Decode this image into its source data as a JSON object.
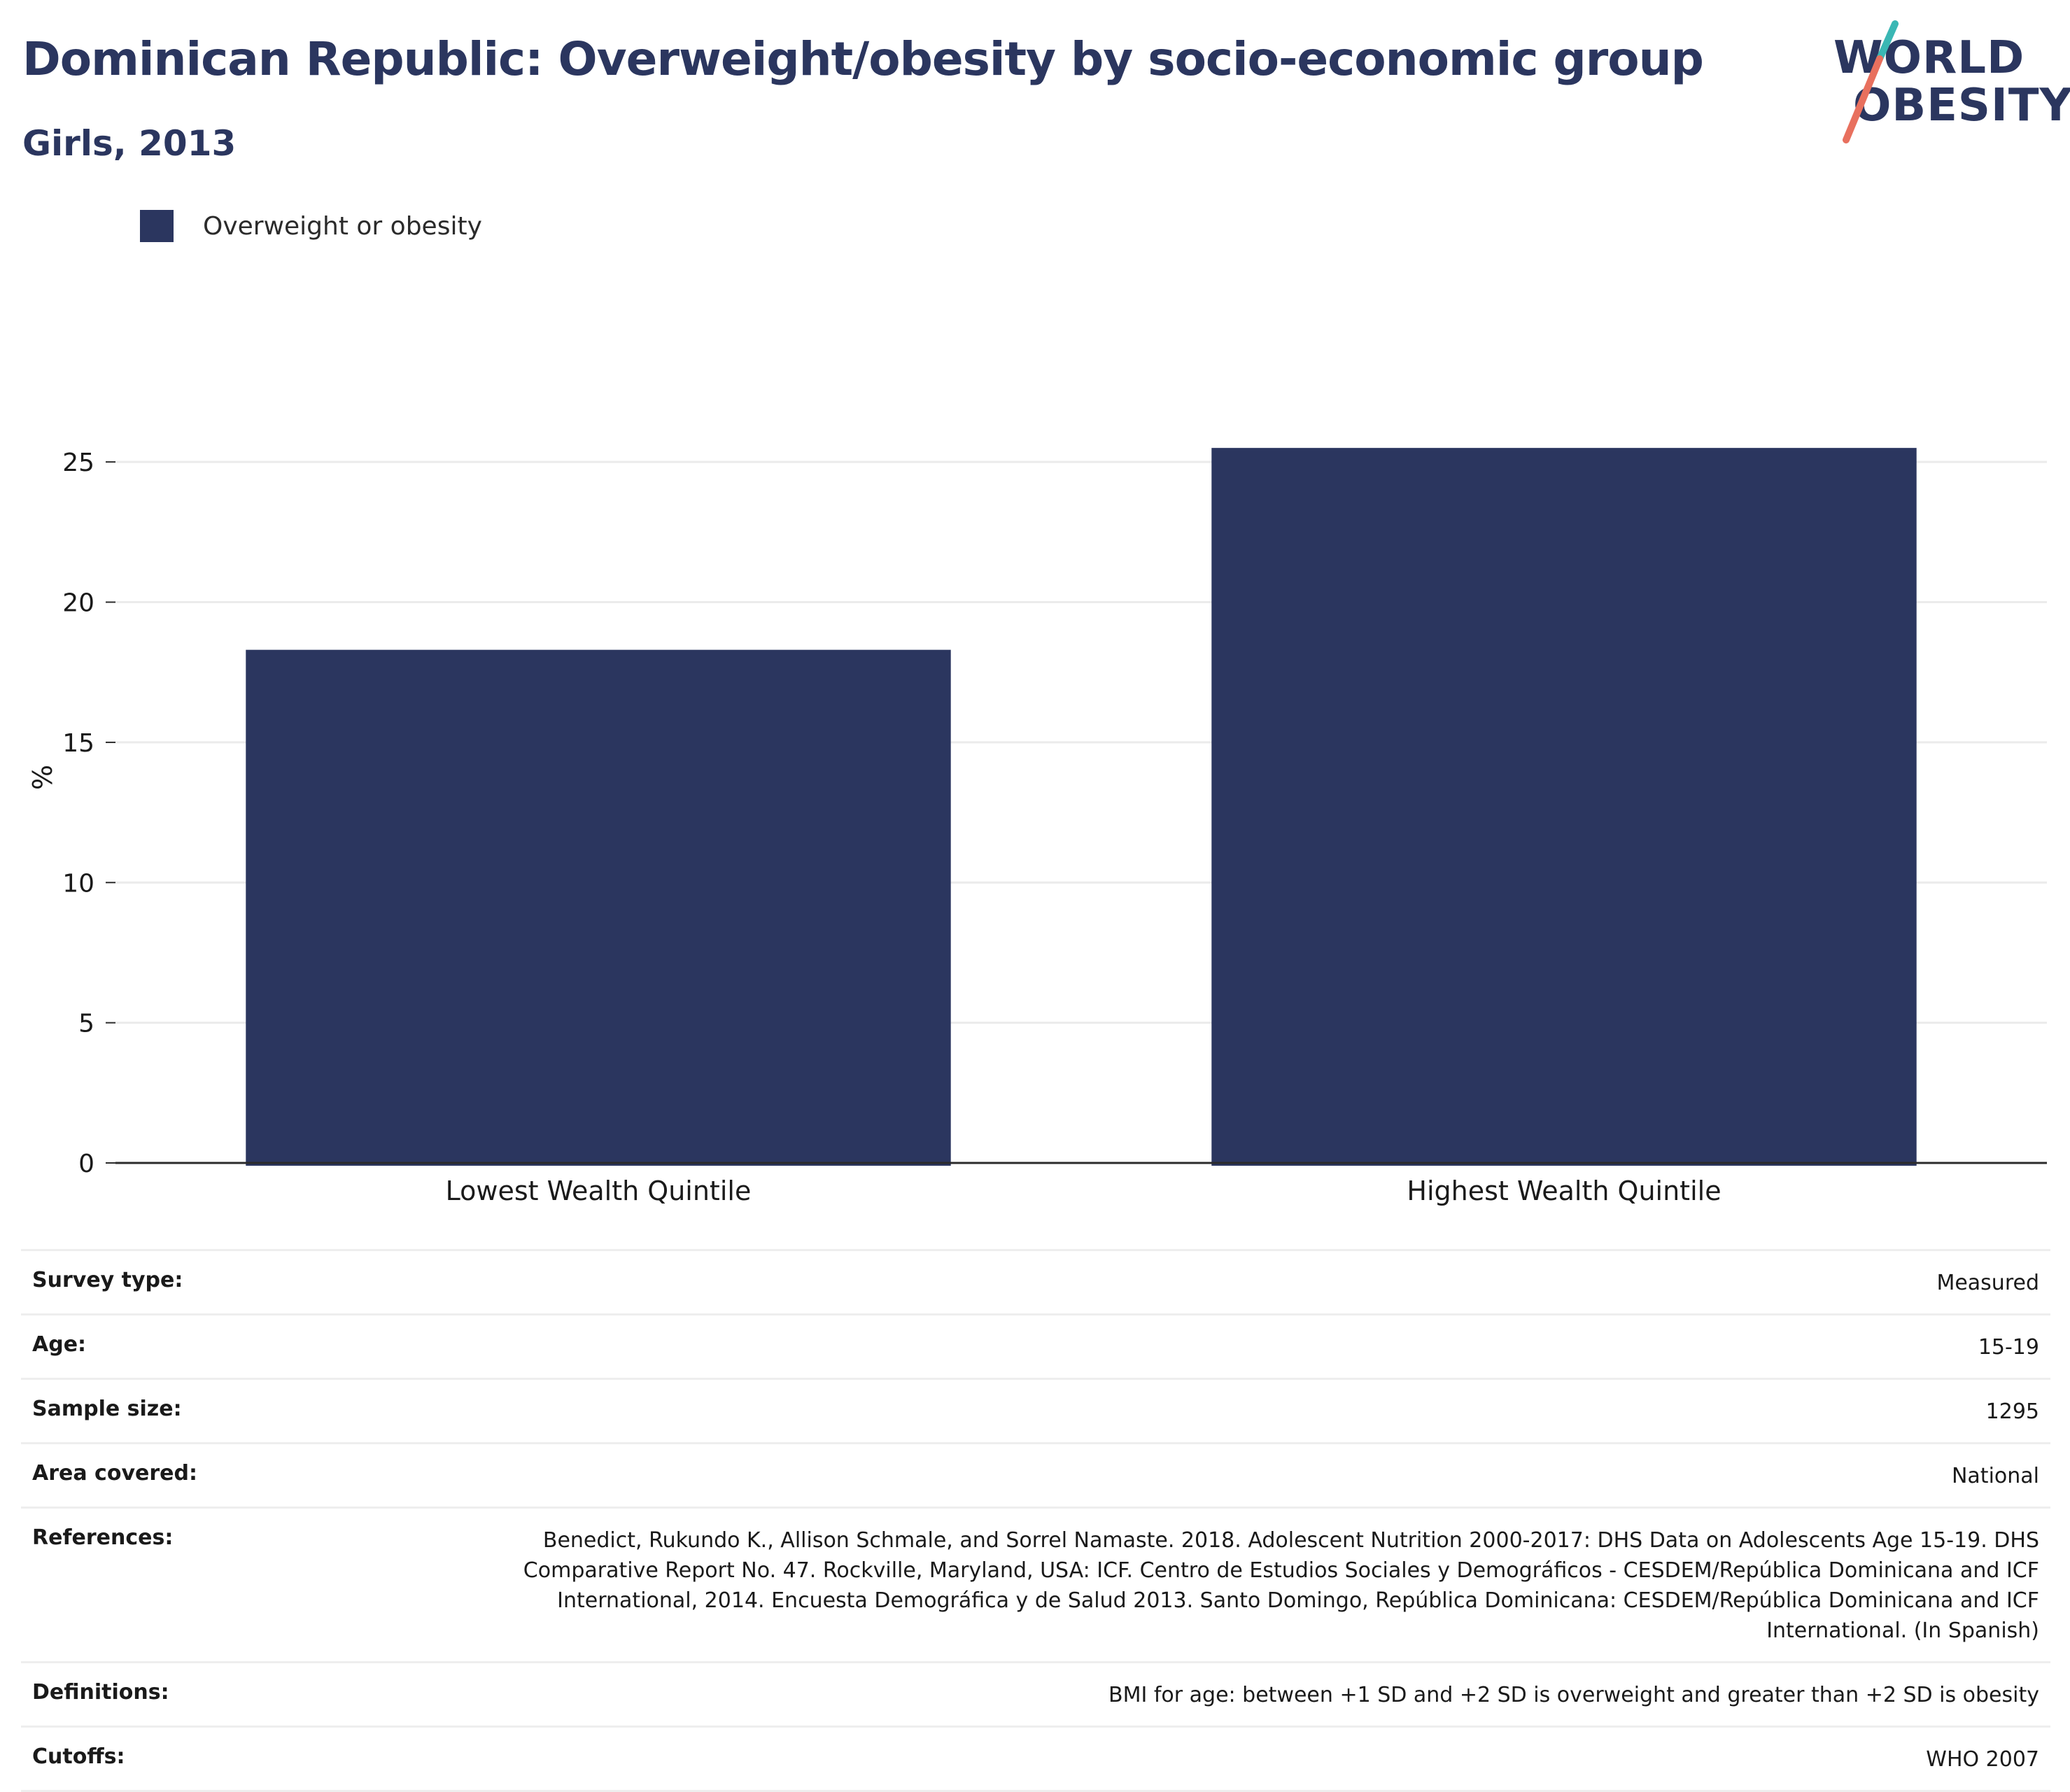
{
  "header": {
    "title": "Dominican Republic: Overweight/obesity by socio-economic group",
    "subtitle": "Girls, 2013"
  },
  "logo": {
    "line1": "WORLD",
    "line2": "OBESITY",
    "accent_teal": "#3ab7b4",
    "accent_coral": "#e8705e"
  },
  "legend": {
    "label": "Overweight or obesity",
    "color": "#2b365f"
  },
  "chart_data": {
    "type": "bar",
    "categories": [
      "Lowest Wealth Quintile",
      "Highest Wealth Quintile"
    ],
    "series": [
      {
        "name": "Overweight or obesity",
        "values": [
          18.3,
          25.5
        ],
        "color": "#2b365f"
      }
    ],
    "ylabel": "%",
    "ylim": [
      0,
      27.5
    ],
    "yticks": [
      0,
      5,
      10,
      15,
      20,
      25
    ],
    "grid": true,
    "legend_position": "top-left"
  },
  "meta": [
    {
      "key": "Survey type:",
      "value": "Measured"
    },
    {
      "key": "Age:",
      "value": "15-19"
    },
    {
      "key": "Sample size:",
      "value": "1295"
    },
    {
      "key": "Area covered:",
      "value": "National"
    },
    {
      "key": "References:",
      "value": "Benedict, Rukundo K., Allison Schmale, and Sorrel Namaste. 2018. Adolescent Nutrition 2000-2017: DHS Data on Adolescents Age 15-19. DHS Comparative Report No. 47. Rockville, Maryland, USA: ICF. Centro de Estudios Sociales y Demográficos - CESDEM/República Dominicana and ICF International, 2014. Encuesta Demográfica y de Salud 2013. Santo Domingo, República Dominicana: CESDEM/República Dominicana and ICF International. (In Spanish)"
    },
    {
      "key": "Definitions:",
      "value": "BMI for age: between +1 SD and +2 SD is overweight and greater than +2 SD is obesity"
    },
    {
      "key": "Cutoffs:",
      "value": "WHO 2007"
    }
  ]
}
